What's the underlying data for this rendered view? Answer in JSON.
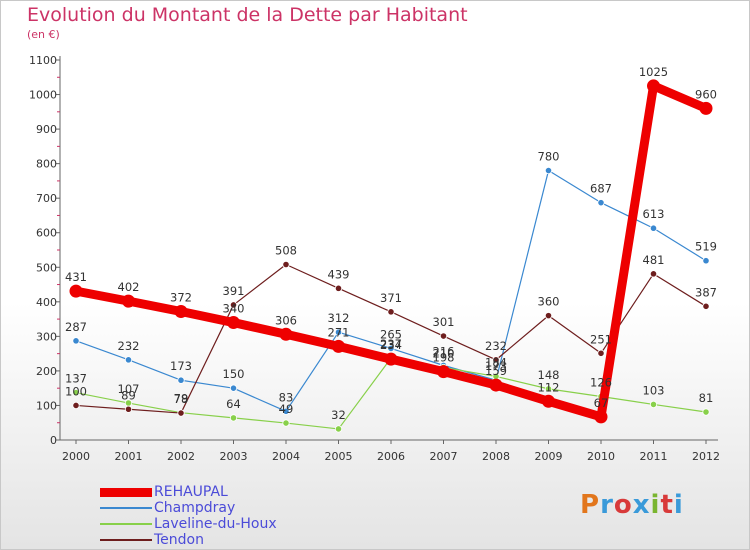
{
  "header": {
    "title": "Evolution du Montant de la Dette par Habitant",
    "subtitle": "(en €)"
  },
  "logo": {
    "text": "Proxiti",
    "colors": [
      "#e2761c",
      "#3a9ad9",
      "#d83a3a",
      "#3a9ad9",
      "#7ab530",
      "#d83a3a",
      "#3a9ad9"
    ]
  },
  "chart_data": {
    "type": "line",
    "x": [
      "2000",
      "2001",
      "2002",
      "2003",
      "2004",
      "2005",
      "2006",
      "2007",
      "2008",
      "2009",
      "2010",
      "2011",
      "2012"
    ],
    "ylim": [
      0,
      1100
    ],
    "yticks": [
      0,
      100,
      200,
      300,
      400,
      500,
      600,
      700,
      800,
      900,
      1000,
      1100
    ],
    "grid": false,
    "legend": "bottom-left",
    "series": [
      {
        "name": "REHAUPAL",
        "color": "#ee0000",
        "values": [
          431,
          402,
          372,
          340,
          306,
          271,
          234,
          198,
          159,
          112,
          67,
          1025,
          960
        ],
        "labels": [
          "431",
          "402",
          "372",
          "340",
          "306",
          "271",
          "234",
          "198",
          "159",
          "112",
          "67",
          "1025",
          "960"
        ]
      },
      {
        "name": "Champdray",
        "color": "#3a88d0",
        "values": [
          287,
          232,
          173,
          150,
          83,
          312,
          265,
          216,
          173,
          780,
          687,
          613,
          519
        ],
        "labels": [
          "287",
          "232",
          "173",
          "150",
          "83",
          "312",
          "265",
          "216",
          "173",
          "780",
          "687",
          "613",
          "519"
        ]
      },
      {
        "name": "Laveline-du-Houx",
        "color": "#88d04a",
        "values": [
          137,
          107,
          79,
          64,
          49,
          32,
          237,
          210,
          184,
          148,
          126,
          103,
          81
        ],
        "labels": [
          "137",
          "107",
          "79",
          "64",
          "49",
          "32",
          "237",
          "210",
          "184",
          "148",
          "126",
          "103",
          "81"
        ]
      },
      {
        "name": "Tendon",
        "color": "#6e1e1e",
        "values": [
          100,
          89,
          78,
          391,
          508,
          439,
          371,
          301,
          232,
          360,
          251,
          481,
          387
        ],
        "labels": [
          "100",
          "89",
          "78",
          "391",
          "508",
          "439",
          "371",
          "301",
          "232",
          "360",
          "251",
          "481",
          "387"
        ]
      }
    ]
  }
}
